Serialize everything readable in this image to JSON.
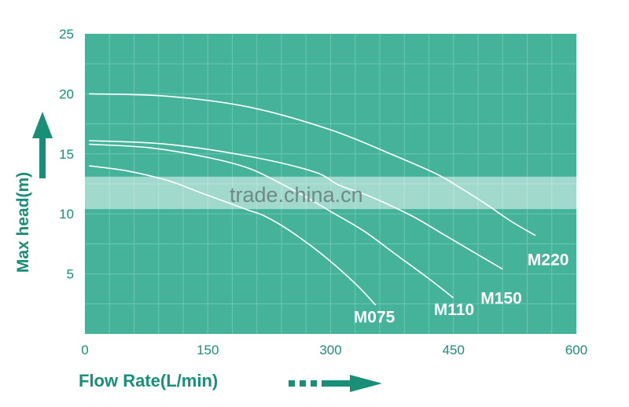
{
  "chart_data": {
    "type": "line",
    "xlabel": "Flow Rate(L/min)",
    "ylabel": "Max head(m)",
    "xlim": [
      0,
      600
    ],
    "ylim": [
      0,
      25
    ],
    "x_ticks": [
      "0",
      "150",
      "300",
      "450",
      "600"
    ],
    "y_ticks": [
      "5",
      "10",
      "15",
      "20",
      "25"
    ],
    "grid": true,
    "series": [
      {
        "name": "M075",
        "x": [
          5,
          50,
          100,
          140,
          180,
          200,
          220,
          250,
          290,
          330,
          355
        ],
        "y": [
          14,
          13.6,
          12.8,
          11.8,
          10.8,
          10.3,
          9.8,
          8.6,
          6.6,
          4.2,
          2.4
        ]
      },
      {
        "name": "M110",
        "x": [
          5,
          80,
          150,
          200,
          240,
          270,
          300,
          340,
          380,
          420,
          450
        ],
        "y": [
          15.8,
          15.5,
          14.7,
          13.8,
          12.5,
          11.4,
          10.2,
          8.6,
          6.6,
          4.6,
          3.0
        ]
      },
      {
        "name": "M150",
        "x": [
          5,
          100,
          200,
          280,
          310,
          350,
          400,
          440,
          480,
          510
        ],
        "y": [
          16.1,
          15.8,
          14.8,
          13.5,
          12.4,
          11.4,
          9.8,
          8.2,
          6.6,
          5.4
        ]
      },
      {
        "name": "M220",
        "x": [
          5,
          100,
          200,
          300,
          380,
          430,
          460,
          490,
          520,
          550
        ],
        "y": [
          20,
          19.8,
          18.9,
          17.0,
          14.8,
          13.3,
          12.1,
          10.8,
          9.4,
          8.2
        ]
      }
    ]
  },
  "watermark": "trade.china.cn",
  "colors": {
    "plot_bg": "#44b39a",
    "grid": "#6cc6b2",
    "axis_text": "#1a8f78",
    "curve": "#ffffff",
    "label": "#ffffff"
  }
}
